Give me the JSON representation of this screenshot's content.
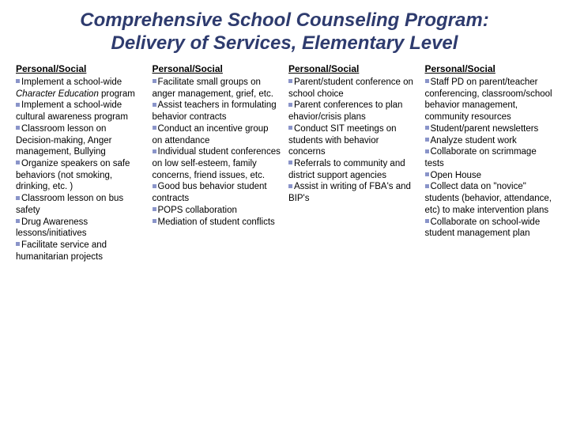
{
  "title": "Comprehensive School Counseling Program: Delivery of Services, Elementary Level",
  "columns": [
    {
      "header": "Personal/Social",
      "items": [
        {
          "pre": "Implement a school-wide ",
          "italic": "Character Education",
          "post": " program"
        },
        {
          "text": "Implement a school-wide cultural awareness program"
        },
        {
          "text": "Classroom lesson on Decision-making, Anger management, Bullying"
        },
        {
          "text": "Organize speakers on safe behaviors (not smoking, drinking, etc. )"
        },
        {
          "text": "Classroom lesson on bus safety"
        },
        {
          "text": "Drug Awareness lessons/initiatives"
        },
        {
          "text": "Facilitate service and humanitarian projects"
        }
      ]
    },
    {
      "header": "Personal/Social",
      "items": [
        {
          "text": "Facilitate small groups on anger management, grief, etc."
        },
        {
          "text": "Assist teachers in formulating behavior contracts"
        },
        {
          "text": "Conduct an incentive group on attendance"
        },
        {
          "text": "Individual student conferences on low self-esteem, family concerns, friend issues, etc."
        },
        {
          "text": "Good bus behavior student contracts"
        },
        {
          "text": "POPS collaboration"
        },
        {
          "text": "Mediation of student conflicts"
        }
      ]
    },
    {
      "header": "Personal/Social",
      "items": [
        {
          "text": "Parent/student conference on school choice"
        },
        {
          "text": "Parent conferences to plan ehavior/crisis plans"
        },
        {
          "text": "Conduct SIT meetings on students with behavior concerns"
        },
        {
          "text": "Referrals to community and district support agencies"
        },
        {
          "text": "Assist in writing of FBA's and BIP's"
        }
      ]
    },
    {
      "header": "Personal/Social",
      "items": [
        {
          "text": "Staff PD on parent/teacher conferencing, classroom/school behavior management, community resources"
        },
        {
          "text": "Student/parent newsletters"
        },
        {
          "text": "Analyze student work"
        },
        {
          "text": "Collaborate on scrimmage tests"
        },
        {
          "text": "Open House"
        },
        {
          "text": "Collect data on \"novice\" students (behavior, attendance, etc) to make intervention plans"
        },
        {
          "text": "Collaborate on school-wide student management plan"
        }
      ]
    }
  ],
  "style": {
    "title_color": "#2e3b6e",
    "bullet_color": "#8a94c9",
    "background": "#ffffff",
    "title_fontsize": 24,
    "body_fontsize": 11.5
  }
}
